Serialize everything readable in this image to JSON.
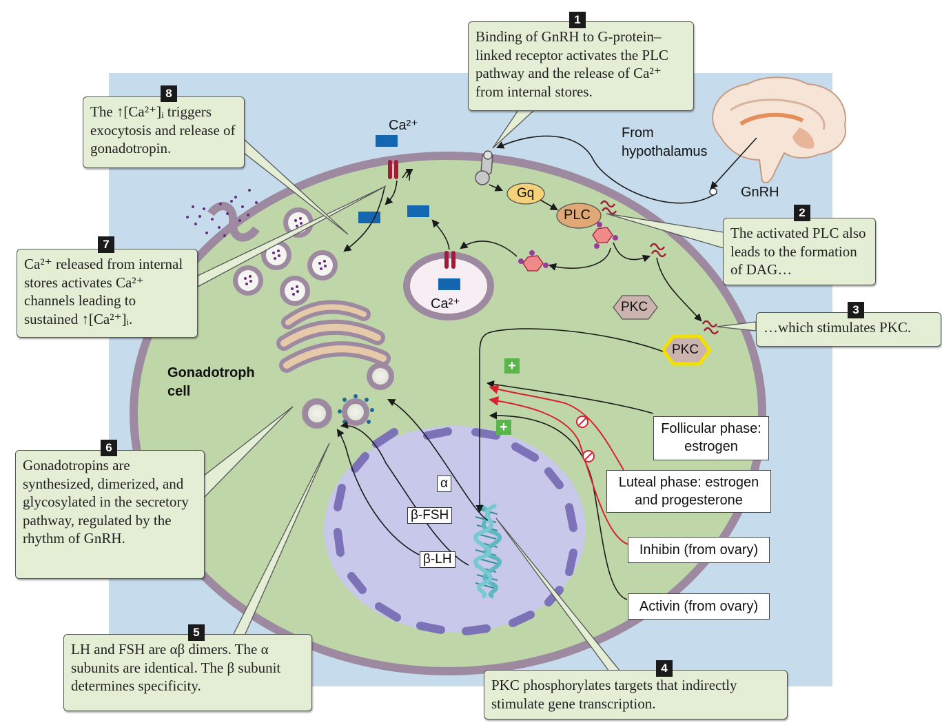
{
  "callouts": {
    "c1": {
      "num": "1",
      "text": "Binding of GnRH to G-protein–linked receptor activates the PLC pathway and the release of Ca²⁺ from internal stores."
    },
    "c2": {
      "num": "2",
      "text": "The activated PLC also leads to the formation of DAG…"
    },
    "c3": {
      "num": "3",
      "text": "…which stimulates PKC."
    },
    "c4": {
      "num": "4",
      "text": "PKC phosphorylates targets that indirectly stimulate gene transcription."
    },
    "c5": {
      "num": "5",
      "text": "LH and FSH are αβ dimers. The α subunits are identical. The β subunit determines specificity."
    },
    "c6": {
      "num": "6",
      "text": "Gonadotropins are synthesized, dimerized, and glycosylated in the secretory pathway, regulated by the rhythm of GnRH."
    },
    "c7": {
      "num": "7",
      "text": "Ca²⁺ released from internal stores activates Ca²⁺ channels leading to sustained ↑[Ca²⁺]ᵢ."
    },
    "c8": {
      "num": "8",
      "text": "The ↑[Ca²⁺]ᵢ triggers exocytosis and release of gonadotropin."
    }
  },
  "labels": {
    "hypothalamus": "From hypothalamus",
    "gnrh": "GnRH",
    "gq": "Gq",
    "plc": "PLC",
    "pkc_inactive": "PKC",
    "pkc_active": "PKC",
    "ca_top": "Ca²⁺",
    "ca_store": "Ca²⁺",
    "cell_name": "Gonadotroph cell",
    "alpha": "α",
    "beta_fsh": "β-FSH",
    "beta_lh": "β-LH",
    "plus": "+"
  },
  "regulators": {
    "follicular": "Follicular phase: estrogen",
    "luteal": "Luteal phase: estrogen and progesterone",
    "inhibin": "Inhibin (from ovary)",
    "activin": "Activin (from ovary)"
  },
  "colors": {
    "background_panel": "#c6dced",
    "cytoplasm": "#bfd6a8",
    "membrane": "#9e8aa0",
    "nucleus": "#c8c8ea",
    "callout_bg": "#e3eed5",
    "inhibit_red": "#d8202f",
    "activate_green": "#5ab54b",
    "pkc_active_ring": "#f2e000",
    "channel_blue": "#1566b0"
  }
}
